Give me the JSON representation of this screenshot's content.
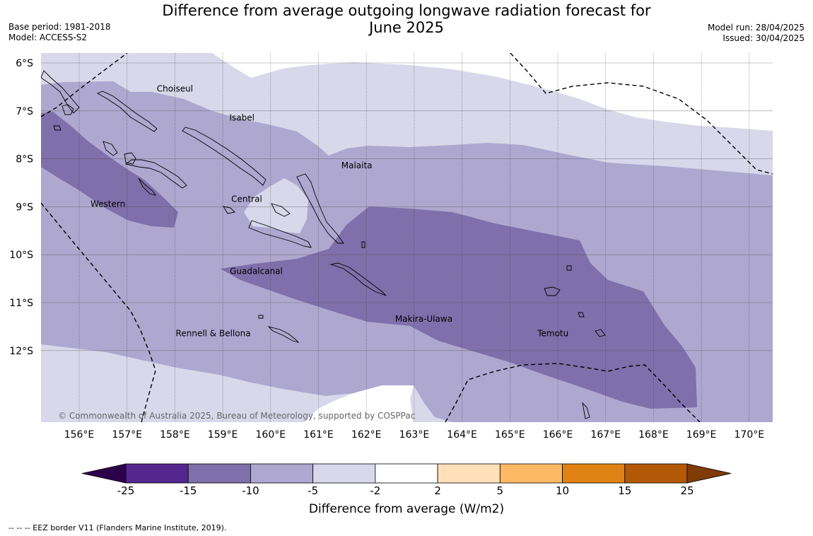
{
  "title": "Difference from average outgoing longwave radiation forecast for",
  "title_line2": "June 2025",
  "base_period": "Base period: 1981-2018",
  "model": "Model: ACCESS-S2",
  "model_run": "Model run: 28/04/2025",
  "issued": "Issued: 30/04/2025",
  "copyright": "© Commonwealth of Australia 2025, Bureau of Meteorology, supported by COSPPac",
  "footnote": "--  --  -- EEZ border V11 (Flanders Marine Institute, 2019).",
  "map": {
    "lon_ticks": [
      "156°E",
      "157°E",
      "158°E",
      "159°E",
      "160°E",
      "161°E",
      "162°E",
      "163°E",
      "164°E",
      "165°E",
      "166°E",
      "167°E",
      "168°E",
      "169°E",
      "170°E"
    ],
    "lat_ticks": [
      "6°S",
      "7°S",
      "8°S",
      "9°S",
      "10°S",
      "11°S",
      "12°S"
    ],
    "regions": [
      {
        "name": "Choiseul",
        "lon": 158.0,
        "lat": -6.6
      },
      {
        "name": "Isabel",
        "lon": 159.4,
        "lat": -7.2
      },
      {
        "name": "Malaita",
        "lon": 161.8,
        "lat": -8.2
      },
      {
        "name": "Central",
        "lon": 159.5,
        "lat": -8.9
      },
      {
        "name": "Western",
        "lon": 156.6,
        "lat": -9.0
      },
      {
        "name": "Guadalcanal",
        "lon": 159.7,
        "lat": -10.4
      },
      {
        "name": "Makira-Ulawa",
        "lon": 163.2,
        "lat": -11.4
      },
      {
        "name": "Rennell & Bellona",
        "lon": 158.8,
        "lat": -11.7
      },
      {
        "name": "Temotu",
        "lon": 165.9,
        "lat": -11.7
      }
    ]
  },
  "colorbar": {
    "label": "Difference from average (W/m2)",
    "ticks": [
      "-25",
      "-15",
      "-10",
      "-5",
      "-2",
      "2",
      "5",
      "10",
      "15",
      "25"
    ],
    "colors": [
      "#54278f",
      "#7f6faa",
      "#aea7d0",
      "#d8d8ea",
      "#ffffff",
      "#ffe0b8",
      "#fdb863",
      "#e08214",
      "#b35806"
    ],
    "under_color": "#2d004b",
    "over_color": "#7f3b08"
  }
}
